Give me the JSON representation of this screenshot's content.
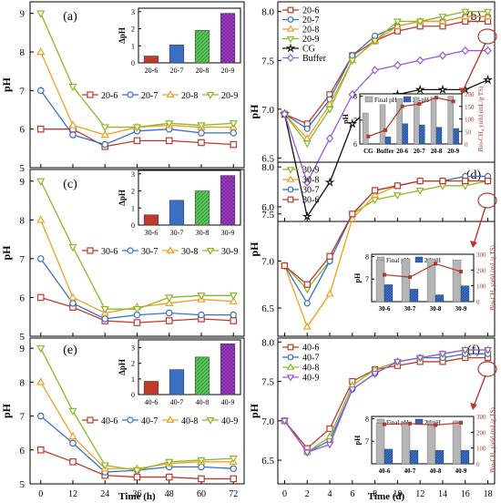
{
  "chart_data": [
    {
      "panel": "(a)",
      "type": "line",
      "x": [
        0,
        12,
        24,
        36,
        48,
        60,
        72
      ],
      "ylabel": "pH",
      "xlabel": "",
      "ylim": [
        5,
        9.3
      ],
      "yticks": [
        5,
        6,
        7,
        8,
        9
      ],
      "xticks": [],
      "legend_position": "middle",
      "series": [
        {
          "name": "20-6",
          "color": "#c0392b",
          "marker": "square",
          "values": [
            6.0,
            6.0,
            5.55,
            5.7,
            5.7,
            5.65,
            5.6
          ]
        },
        {
          "name": "20-7",
          "color": "#3a6fc4",
          "marker": "circle",
          "values": [
            7.0,
            5.85,
            5.6,
            5.95,
            6.0,
            5.9,
            5.9
          ]
        },
        {
          "name": "20-8",
          "color": "#f0a020",
          "marker": "triangle-up",
          "values": [
            8.0,
            6.1,
            5.85,
            6.05,
            6.1,
            6.05,
            6.05
          ]
        },
        {
          "name": "20-9",
          "color": "#8db829",
          "marker": "triangle-down",
          "values": [
            9.0,
            7.1,
            6.05,
            6.05,
            6.15,
            6.1,
            6.15
          ]
        }
      ],
      "inset": {
        "ylabel": "ΔpH",
        "categories": [
          "20-6",
          "20-7",
          "20-8",
          "20-9"
        ],
        "values": [
          0.4,
          1.05,
          1.9,
          2.9
        ],
        "ylim": [
          0,
          3.2
        ],
        "yticks": [
          0,
          1,
          2,
          3
        ]
      }
    },
    {
      "panel": "(c)",
      "type": "line",
      "x": [
        0,
        12,
        24,
        36,
        48,
        60,
        72
      ],
      "ylabel": "pH",
      "xlabel": "",
      "ylim": [
        5,
        9.3
      ],
      "yticks": [
        5,
        6,
        7,
        8,
        9
      ],
      "xticks": [],
      "legend_position": "bottom",
      "series": [
        {
          "name": "30-6",
          "color": "#c0392b",
          "marker": "square",
          "values": [
            6.0,
            5.75,
            5.4,
            5.35,
            5.4,
            5.45,
            5.4
          ]
        },
        {
          "name": "30-7",
          "color": "#3a6fc4",
          "marker": "circle",
          "values": [
            7.0,
            5.85,
            5.45,
            5.55,
            5.6,
            5.55,
            5.55
          ]
        },
        {
          "name": "30-8",
          "color": "#f0a020",
          "marker": "triangle-up",
          "values": [
            8.0,
            6.0,
            5.6,
            5.75,
            5.85,
            5.95,
            5.9
          ]
        },
        {
          "name": "30-9",
          "color": "#8db829",
          "marker": "triangle-down",
          "values": [
            9.0,
            7.3,
            5.7,
            5.7,
            6.0,
            6.05,
            6.05
          ]
        }
      ],
      "inset": {
        "ylabel": "ΔpH",
        "categories": [
          "30-6",
          "30-7",
          "30-8",
          "30-9"
        ],
        "values": [
          0.6,
          1.45,
          2.0,
          2.9
        ],
        "ylim": [
          0,
          3.2
        ],
        "yticks": [
          0,
          1,
          2,
          3
        ]
      }
    },
    {
      "panel": "(e)",
      "type": "line",
      "x": [
        0,
        12,
        24,
        36,
        48,
        60,
        72
      ],
      "ylabel": "pH",
      "xlabel": "Time (h)",
      "ylim": [
        5,
        9.3
      ],
      "yticks": [
        5,
        6,
        7,
        8,
        9
      ],
      "xticks": [
        0,
        12,
        24,
        36,
        48,
        60,
        72
      ],
      "legend_position": "bottom",
      "series": [
        {
          "name": "40-6",
          "color": "#c0392b",
          "marker": "square",
          "values": [
            6.0,
            5.65,
            5.25,
            5.2,
            5.2,
            5.15,
            5.15
          ]
        },
        {
          "name": "40-7",
          "color": "#3a6fc4",
          "marker": "circle",
          "values": [
            7.0,
            6.2,
            5.35,
            5.4,
            5.5,
            5.5,
            5.45
          ]
        },
        {
          "name": "40-8",
          "color": "#f0a020",
          "marker": "triangle-up",
          "values": [
            8.0,
            6.4,
            5.45,
            5.45,
            5.6,
            5.65,
            5.65
          ]
        },
        {
          "name": "40-9",
          "color": "#8db829",
          "marker": "triangle-down",
          "values": [
            9.0,
            7.15,
            5.55,
            5.4,
            5.65,
            5.7,
            5.75
          ]
        }
      ],
      "inset": {
        "ylabel": "ΔpH",
        "categories": [
          "40-6",
          "40-7",
          "40-8",
          "40-9"
        ],
        "values": [
          0.85,
          1.6,
          2.4,
          3.25
        ],
        "ylim": [
          0,
          3.5
        ],
        "yticks": [
          0,
          1,
          2,
          3
        ]
      }
    },
    {
      "panel": "(b)",
      "type": "line",
      "x": [
        0,
        2,
        4,
        6,
        8,
        10,
        12,
        14,
        16,
        18
      ],
      "ylabel": "pH",
      "xlabel": "",
      "ylim": [
        5.85,
        8.1
      ],
      "yticks": [
        6.0,
        6.5,
        7.0,
        7.5,
        8.0
      ],
      "xticks": [],
      "legend_position": "top-left",
      "series": [
        {
          "name": "20-6",
          "color": "#c0392b",
          "marker": "square",
          "values": [
            6.95,
            6.85,
            7.15,
            7.55,
            7.7,
            7.8,
            7.85,
            7.85,
            7.9,
            7.9
          ]
        },
        {
          "name": "20-7",
          "color": "#3a6fc4",
          "marker": "circle",
          "values": [
            6.95,
            6.8,
            7.1,
            7.55,
            7.75,
            7.85,
            7.9,
            7.9,
            7.95,
            7.95
          ]
        },
        {
          "name": "20-8",
          "color": "#f0a020",
          "marker": "triangle-up",
          "values": [
            6.95,
            6.7,
            7.05,
            7.5,
            7.7,
            7.85,
            7.9,
            7.9,
            7.95,
            7.95
          ]
        },
        {
          "name": "20-9",
          "color": "#8db829",
          "marker": "triangle-down",
          "values": [
            6.95,
            6.65,
            7.0,
            7.5,
            7.7,
            7.9,
            7.9,
            7.95,
            8.0,
            8.0
          ]
        },
        {
          "name": "CG",
          "color": "#111111",
          "marker": "star",
          "values": [
            6.95,
            5.9,
            6.25,
            6.85,
            7.05,
            7.15,
            7.2,
            7.2,
            7.2,
            7.3
          ]
        },
        {
          "name": "Buffer",
          "color": "#9b59d6",
          "marker": "diamond",
          "values": [
            6.95,
            6.25,
            6.7,
            7.15,
            7.4,
            7.45,
            7.5,
            7.55,
            7.6,
            7.6
          ]
        }
      ],
      "inset": {
        "categories": [
          "CG",
          "Buffer",
          "20-6",
          "20-7",
          "20-8",
          "20-9"
        ],
        "legend": [
          "Final pH",
          "2d-pH"
        ],
        "ylabel": "pH",
        "ylim": [
          6,
          8.1
        ],
        "yticks": [
          6,
          7,
          8
        ],
        "final_ph": [
          7.3,
          7.65,
          7.9,
          7.95,
          7.95,
          8.0
        ],
        "d2_ph": [
          6.0,
          6.3,
          6.85,
          6.8,
          6.7,
          6.65
        ],
        "yield_label": "Bio-CH₄ yield (mL/g TS)",
        "yield_ticks": [
          0,
          50,
          100,
          150,
          200
        ],
        "yield_range": [
          0,
          200
        ],
        "yield": [
          30,
          55,
          150,
          160,
          185,
          170
        ]
      }
    },
    {
      "panel": "(d)",
      "type": "line",
      "x": [
        0,
        2,
        4,
        6,
        8,
        10,
        12,
        14,
        16,
        18
      ],
      "ylabel": "pH",
      "xlabel": "",
      "ylim": [
        6.2,
        8.05
      ],
      "yticks": [
        6.5,
        7.0,
        7.5,
        8.0
      ],
      "xticks": [],
      "legend_position": "top-left",
      "series": [
        {
          "name": "30-9",
          "color": "#8db829",
          "marker": "triangle-down",
          "values": [
            6.95,
            6.7,
            7.0,
            7.5,
            7.65,
            7.7,
            7.75,
            7.8,
            7.8,
            7.85
          ]
        },
        {
          "name": "30-8",
          "color": "#f0a020",
          "marker": "triangle-up",
          "values": [
            6.95,
            6.3,
            6.65,
            7.45,
            7.7,
            7.8,
            7.85,
            7.85,
            7.9,
            7.9
          ]
        },
        {
          "name": "30-7",
          "color": "#3a6fc4",
          "marker": "circle",
          "values": [
            6.95,
            6.55,
            7.0,
            7.5,
            7.75,
            7.8,
            7.85,
            7.85,
            7.9,
            7.9
          ]
        },
        {
          "name": "30-6",
          "color": "#c0392b",
          "marker": "square",
          "values": [
            6.95,
            6.75,
            7.05,
            7.5,
            7.75,
            7.8,
            7.85,
            7.85,
            7.85,
            7.85
          ]
        }
      ],
      "inset": {
        "categories": [
          "30-6",
          "30-7",
          "30-8",
          "30-9"
        ],
        "legend": [
          "Final pH",
          "2d-pH"
        ],
        "ylabel": "pH",
        "ylim": [
          6,
          8.1
        ],
        "yticks": [
          7,
          8
        ],
        "final_ph": [
          7.85,
          7.9,
          7.9,
          7.85
        ],
        "d2_ph": [
          6.75,
          6.55,
          6.3,
          6.7
        ],
        "yield_label": "Bio-CH₄ yield (mL/g TS)",
        "yield_ticks": [
          0,
          100,
          200,
          300
        ],
        "yield_range": [
          0,
          300
        ],
        "yield": [
          170,
          155,
          240,
          190
        ]
      }
    },
    {
      "panel": "(f)",
      "type": "line",
      "x": [
        0,
        2,
        4,
        6,
        8,
        10,
        12,
        14,
        16,
        18
      ],
      "ylabel": "pH",
      "xlabel": "Time (d)",
      "ylim": [
        6.2,
        8.05
      ],
      "yticks": [
        6.5,
        7.0,
        7.5,
        8.0
      ],
      "xticks": [
        0,
        2,
        4,
        6,
        8,
        10,
        12,
        14,
        16,
        18
      ],
      "legend_position": "top-left",
      "series": [
        {
          "name": "40-6",
          "color": "#c0392b",
          "marker": "square",
          "values": [
            7.0,
            6.65,
            6.9,
            7.5,
            7.65,
            7.7,
            7.75,
            7.75,
            7.8,
            7.8
          ]
        },
        {
          "name": "40-7",
          "color": "#3a6fc4",
          "marker": "circle",
          "values": [
            7.0,
            6.6,
            6.75,
            7.4,
            7.6,
            7.75,
            7.8,
            7.8,
            7.85,
            7.85
          ]
        },
        {
          "name": "40-8",
          "color": "#8db829",
          "marker": "triangle-up",
          "values": [
            7.0,
            6.6,
            6.8,
            7.45,
            7.65,
            7.75,
            7.8,
            7.85,
            7.9,
            7.9
          ]
        },
        {
          "name": "40-9",
          "color": "#9b59d6",
          "marker": "triangle-down",
          "values": [
            7.0,
            6.6,
            6.7,
            7.4,
            7.6,
            7.75,
            7.8,
            7.85,
            7.9,
            7.9
          ]
        }
      ],
      "inset": {
        "categories": [
          "40-6",
          "40-7",
          "40-8",
          "40-9"
        ],
        "legend": [
          "Final pH",
          "2d-pH"
        ],
        "ylabel": "pH",
        "ylim": [
          6,
          8.1
        ],
        "yticks": [
          7,
          8
        ],
        "final_ph": [
          7.8,
          7.85,
          7.9,
          7.9
        ],
        "d2_ph": [
          6.65,
          6.6,
          6.6,
          6.6
        ],
        "yield_label": "Bio-CH₄ yield (mL/g TS)",
        "yield_ticks": [
          0,
          100,
          200,
          300
        ],
        "yield_range": [
          0,
          300
        ],
        "yield": [
          250,
          255,
          245,
          260
        ]
      }
    }
  ]
}
